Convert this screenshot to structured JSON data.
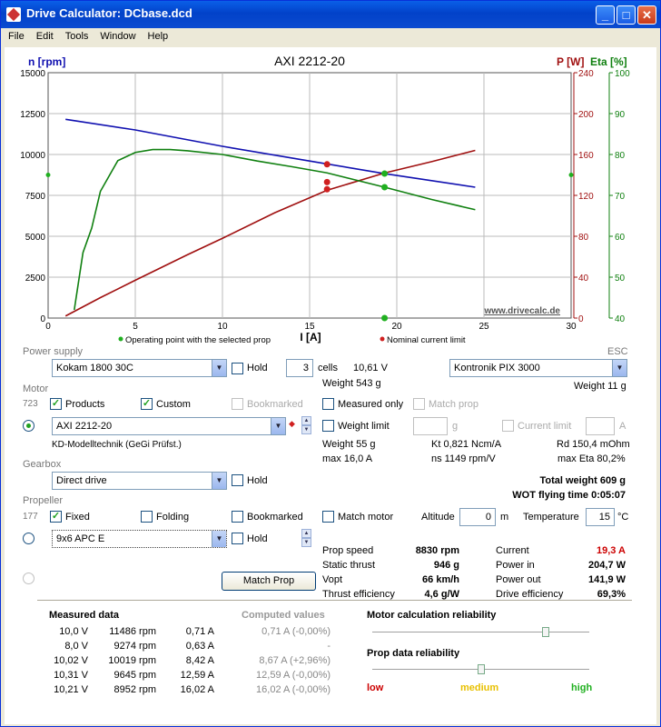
{
  "window": {
    "title": "Drive Calculator: DCbase.dcd"
  },
  "menu": [
    "File",
    "Edit",
    "Tools",
    "Window",
    "Help"
  ],
  "chart_data": {
    "type": "line",
    "title": "AXI 2212-20",
    "xlabel": "I [A]",
    "ylabel_left": "n [rpm]",
    "ylabel_right1": "P [W]",
    "ylabel_right2": "Eta [%]",
    "xlim": [
      0,
      30
    ],
    "ylim_left": [
      0,
      15000
    ],
    "ylim_right1": [
      0,
      240
    ],
    "ylim_right2": [
      40,
      100
    ],
    "xticks": [
      "0",
      "5",
      "10",
      "15",
      "20",
      "25",
      "30"
    ],
    "yticks_left": [
      "0",
      "2500",
      "5000",
      "7500",
      "10000",
      "12500",
      "15000"
    ],
    "yticks_right1": [
      "0",
      "40",
      "80",
      "120",
      "160",
      "200",
      "240"
    ],
    "yticks_right2": [
      "40",
      "50",
      "60",
      "70",
      "80",
      "90",
      "100"
    ],
    "watermark": "www.drivecalc.de",
    "legend": [
      "Operating point with the selected prop",
      "Nominal current limit"
    ],
    "series": [
      {
        "axis": "left",
        "color": "#1010b0",
        "x": [
          1,
          5,
          10,
          15,
          19.3,
          24.5
        ],
        "y": [
          12150,
          11500,
          10500,
          9600,
          8830,
          8000
        ]
      },
      {
        "axis": "right1",
        "color": "#a01010",
        "x": [
          1,
          3,
          5,
          8,
          10,
          13,
          16,
          19.3,
          22,
          24.5
        ],
        "y": [
          2,
          20,
          37,
          62,
          78,
          103,
          125,
          141.9,
          153,
          164
        ]
      },
      {
        "axis": "right2",
        "color": "#108010",
        "x": [
          1.5,
          2,
          2.5,
          3,
          4,
          5,
          6,
          7,
          8,
          10,
          12,
          14,
          16,
          19.3,
          22,
          24.5
        ],
        "y": [
          42,
          56,
          62,
          71,
          78.5,
          80.5,
          81.2,
          81.2,
          80.9,
          80,
          78.4,
          77,
          75.5,
          72,
          69,
          66.5
        ]
      }
    ],
    "points": [
      {
        "axis": "left",
        "x": 16,
        "y": 9400,
        "color": "#d02020"
      },
      {
        "axis": "right1",
        "x": 16,
        "y": 133,
        "color": "#d02020"
      },
      {
        "axis": "right1",
        "x": 16,
        "y": 126,
        "color": "#d02020"
      },
      {
        "axis": "left",
        "x": 19.3,
        "y": 8830,
        "color": "#20b020"
      },
      {
        "axis": "right2",
        "x": 19.3,
        "y": 72,
        "color": "#20b020"
      },
      {
        "axis": "right2",
        "x": 19.3,
        "y": 40,
        "color": "#20b020"
      }
    ],
    "side_markers": [
      {
        "x": 0,
        "y": 75,
        "axis": "right2"
      },
      {
        "x": 30,
        "y": 75,
        "axis": "right2"
      }
    ]
  },
  "power_supply": {
    "label": "Power supply",
    "battery": "Kokam 1800 30C",
    "hold": "Hold",
    "cells": "3",
    "cells_label": "cells",
    "voltage": "10,61 V",
    "weight": "Weight 543 g"
  },
  "esc": {
    "label": "ESC",
    "model": "Kontronik PIX 3000",
    "weight": "Weight 11 g"
  },
  "motor": {
    "label": "Motor",
    "count": "723",
    "products": "Products",
    "custom": "Custom",
    "bookmarked": "Bookmarked",
    "measured_only": "Measured only",
    "match_prop": "Match prop",
    "model": "AXI 2212-20",
    "weight_limit": "Weight limit",
    "g": "g",
    "current_limit": "Current limit",
    "a": "A",
    "maker": "KD-Modelltechnik (GeGi Prüfst.)",
    "weight": "Weight 55 g",
    "kt": "Kt 0,821 Ncm/A",
    "rd": "Rd 150,4 mOhm",
    "max_current": "max 16,0 A",
    "ns": "ns 1149 rpm/V",
    "max_eta": "max Eta 80,2%"
  },
  "gearbox": {
    "label": "Gearbox",
    "value": "Direct drive",
    "hold": "Hold"
  },
  "totals": {
    "total_weight": "Total weight 609 g",
    "wot": "WOT flying time 0:05:07"
  },
  "propeller": {
    "label": "Propeller",
    "count": "177",
    "fixed": "Fixed",
    "folding": "Folding",
    "bookmarked": "Bookmarked",
    "match_motor": "Match motor",
    "altitude_label": "Altitude",
    "altitude": "0",
    "m": "m",
    "temperature_label": "Temperature",
    "temperature": "15",
    "degc": "°C",
    "model": "9x6 APC E",
    "hold": "Hold",
    "match_button": "Match Prop"
  },
  "results": {
    "left": [
      [
        "Prop speed",
        "8830 rpm"
      ],
      [
        "Static thrust",
        "946 g"
      ],
      [
        "Vopt",
        "66 km/h"
      ],
      [
        "Thrust efficiency",
        "4,6 g/W"
      ]
    ],
    "right": [
      [
        "Current",
        "19,3 A"
      ],
      [
        "Power in",
        "204,7 W"
      ],
      [
        "Power out",
        "141,9 W"
      ],
      [
        "Drive efficiency",
        "69,3%"
      ]
    ],
    "current_color": "#cc0000"
  },
  "measured": {
    "title": "Measured data",
    "computed_title": "Computed values",
    "rows": [
      [
        "10,0 V",
        "11486 rpm",
        "0,71 A",
        "0,71 A (-0,00%)"
      ],
      [
        "8,0 V",
        "9274 rpm",
        "0,63 A",
        "-"
      ],
      [
        "10,02 V",
        "10019 rpm",
        "8,42 A",
        "8,67 A (+2,96%)"
      ],
      [
        "10,31 V",
        "9645 rpm",
        "12,59 A",
        "12,59 A (-0,00%)"
      ],
      [
        "10,21 V",
        "8952 rpm",
        "16,02 A",
        "16,02 A (-0,00%)"
      ]
    ]
  },
  "reliability": {
    "motor_title": "Motor calculation reliability",
    "motor_level": 0.8,
    "prop_title": "Prop data reliability",
    "prop_level": 0.5,
    "low": "low",
    "medium": "medium",
    "high": "high"
  }
}
